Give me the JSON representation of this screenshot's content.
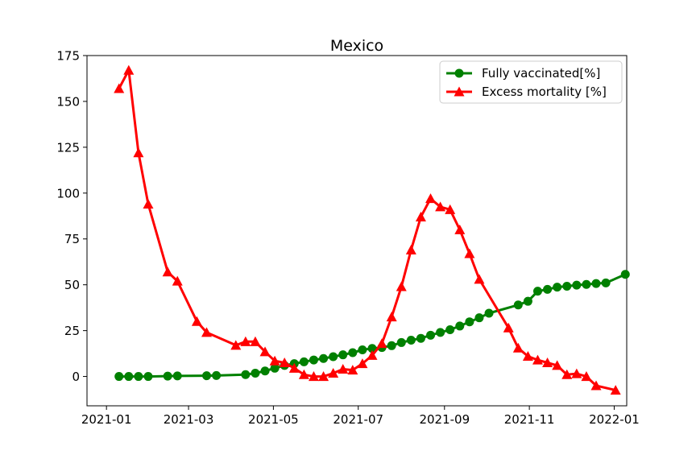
{
  "chart_data": {
    "type": "line",
    "title": "Mexico",
    "xlabel": "",
    "ylabel": "",
    "x_ticks": [
      "2021-01",
      "2021-03",
      "2021-05",
      "2021-07",
      "2021-09",
      "2021-11",
      "2022-01"
    ],
    "y_ticks": [
      0,
      25,
      50,
      75,
      100,
      125,
      150,
      175
    ],
    "xlim": [
      "2020-12-18",
      "2022-01-10"
    ],
    "ylim": [
      -16,
      175
    ],
    "grid": false,
    "legend_position": "top-right",
    "series": [
      {
        "name": "Fully vaccinated[%]",
        "color": "#008000",
        "marker": "circle",
        "points": [
          [
            "2021-01-10",
            0
          ],
          [
            "2021-01-17",
            0
          ],
          [
            "2021-01-24",
            0
          ],
          [
            "2021-01-31",
            0
          ],
          [
            "2021-02-14",
            0.2
          ],
          [
            "2021-02-21",
            0.3
          ],
          [
            "2021-03-14",
            0.4
          ],
          [
            "2021-03-21",
            0.5
          ],
          [
            "2021-04-11",
            1.0
          ],
          [
            "2021-04-18",
            1.8
          ],
          [
            "2021-04-25",
            3.0
          ],
          [
            "2021-05-02",
            4.5
          ],
          [
            "2021-05-09",
            6.0
          ],
          [
            "2021-05-16",
            7.0
          ],
          [
            "2021-05-23",
            8.0
          ],
          [
            "2021-05-30",
            9.0
          ],
          [
            "2021-06-06",
            9.8
          ],
          [
            "2021-06-13",
            10.8
          ],
          [
            "2021-06-20",
            11.8
          ],
          [
            "2021-06-27",
            13.0
          ],
          [
            "2021-07-04",
            14.5
          ],
          [
            "2021-07-11",
            15.3
          ],
          [
            "2021-07-18",
            15.8
          ],
          [
            "2021-07-25",
            16.8
          ],
          [
            "2021-08-01",
            18.5
          ],
          [
            "2021-08-08",
            19.8
          ],
          [
            "2021-08-15",
            20.8
          ],
          [
            "2021-08-22",
            22.5
          ],
          [
            "2021-08-29",
            24.0
          ],
          [
            "2021-09-05",
            25.5
          ],
          [
            "2021-09-12",
            27.5
          ],
          [
            "2021-09-19",
            29.8
          ],
          [
            "2021-09-26",
            32.0
          ],
          [
            "2021-10-03",
            34.5
          ],
          [
            "2021-10-24",
            39.0
          ],
          [
            "2021-10-31",
            41.0
          ],
          [
            "2021-11-07",
            46.5
          ],
          [
            "2021-11-14",
            47.5
          ],
          [
            "2021-11-21",
            48.7
          ],
          [
            "2021-11-28",
            49.2
          ],
          [
            "2021-12-05",
            49.8
          ],
          [
            "2021-12-12",
            50.2
          ],
          [
            "2021-12-19",
            50.7
          ],
          [
            "2021-12-26",
            51.0
          ],
          [
            "2022-01-09",
            55.7
          ]
        ]
      },
      {
        "name": "Excess mortality [%]",
        "color": "#ff0000",
        "marker": "triangle",
        "points": [
          [
            "2021-01-10",
            157
          ],
          [
            "2021-01-17",
            167
          ],
          [
            "2021-01-24",
            122
          ],
          [
            "2021-01-31",
            94
          ],
          [
            "2021-02-14",
            57
          ],
          [
            "2021-02-21",
            52
          ],
          [
            "2021-03-07",
            30
          ],
          [
            "2021-03-14",
            24
          ],
          [
            "2021-04-04",
            17
          ],
          [
            "2021-04-11",
            19
          ],
          [
            "2021-04-18",
            19
          ],
          [
            "2021-04-25",
            13.5
          ],
          [
            "2021-05-02",
            8.5
          ],
          [
            "2021-05-09",
            7.5
          ],
          [
            "2021-05-16",
            4.5
          ],
          [
            "2021-05-23",
            1.0
          ],
          [
            "2021-05-30",
            0
          ],
          [
            "2021-06-06",
            0
          ],
          [
            "2021-06-13",
            1.8
          ],
          [
            "2021-06-20",
            4.0
          ],
          [
            "2021-06-27",
            3.5
          ],
          [
            "2021-07-04",
            7.0
          ],
          [
            "2021-07-11",
            11.5
          ],
          [
            "2021-07-18",
            18.0
          ],
          [
            "2021-07-25",
            32.5
          ],
          [
            "2021-08-01",
            49
          ],
          [
            "2021-08-08",
            69
          ],
          [
            "2021-08-15",
            87
          ],
          [
            "2021-08-22",
            97
          ],
          [
            "2021-08-29",
            92.5
          ],
          [
            "2021-09-05",
            91
          ],
          [
            "2021-09-12",
            80
          ],
          [
            "2021-09-19",
            67
          ],
          [
            "2021-09-26",
            53
          ],
          [
            "2021-10-17",
            26.5
          ],
          [
            "2021-10-24",
            15.5
          ],
          [
            "2021-10-31",
            11
          ],
          [
            "2021-11-07",
            9
          ],
          [
            "2021-11-14",
            7.5
          ],
          [
            "2021-11-21",
            6
          ],
          [
            "2021-11-28",
            1
          ],
          [
            "2021-12-05",
            1.5
          ],
          [
            "2021-12-12",
            0
          ],
          [
            "2021-12-19",
            -5
          ],
          [
            "2022-01-02",
            -7.5
          ]
        ]
      }
    ]
  }
}
